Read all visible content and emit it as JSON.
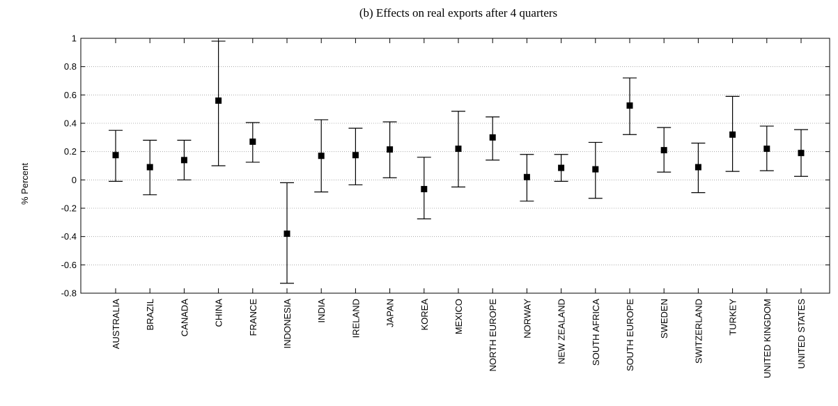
{
  "chart_data": {
    "type": "scatter",
    "title": "(b) Effects on real exports after 4 quarters",
    "ylabel": "% Percent",
    "xlabel": "",
    "ylim": [
      -0.8,
      1
    ],
    "yticks": [
      "1",
      "0.8",
      "0.6",
      "0.4",
      "0.2",
      "0",
      "-0.2",
      "-0.4",
      "-0.6",
      "-0.8"
    ],
    "grid": "horizontal dotted",
    "categories": [
      "AUSTRALIA",
      "BRAZIL",
      "CANADA",
      "CHINA",
      "FRANCE",
      "INDONESIA",
      "INDIA",
      "IRELAND",
      "JAPAN",
      "KOREA",
      "MEXICO",
      "NORTH EUROPE",
      "NORWAY",
      "NEW ZEALAND",
      "SOUTH AFRICA",
      "SOUTH EUROPE",
      "SWEDEN",
      "SWITZERLAND",
      "TURKEY",
      "UNITED KINGDOM",
      "UNITED STATES"
    ],
    "values": [
      0.175,
      0.09,
      0.14,
      0.56,
      0.27,
      -0.38,
      0.17,
      0.175,
      0.215,
      -0.065,
      0.22,
      0.3,
      0.02,
      0.085,
      0.075,
      0.525,
      0.21,
      0.09,
      0.32,
      0.22,
      0.19
    ],
    "lower": [
      -0.01,
      -0.105,
      0.0,
      0.1,
      0.125,
      -0.73,
      -0.085,
      -0.035,
      0.015,
      -0.275,
      -0.05,
      0.14,
      -0.15,
      -0.01,
      -0.13,
      0.32,
      0.055,
      -0.09,
      0.06,
      0.065,
      0.025
    ],
    "upper": [
      0.35,
      0.28,
      0.28,
      0.98,
      0.405,
      -0.02,
      0.425,
      0.365,
      0.41,
      0.16,
      0.485,
      0.445,
      0.18,
      0.18,
      0.265,
      0.72,
      0.37,
      0.26,
      0.59,
      0.38,
      0.355
    ],
    "marker_color": "#000000",
    "errorbar_color": "#000000"
  }
}
